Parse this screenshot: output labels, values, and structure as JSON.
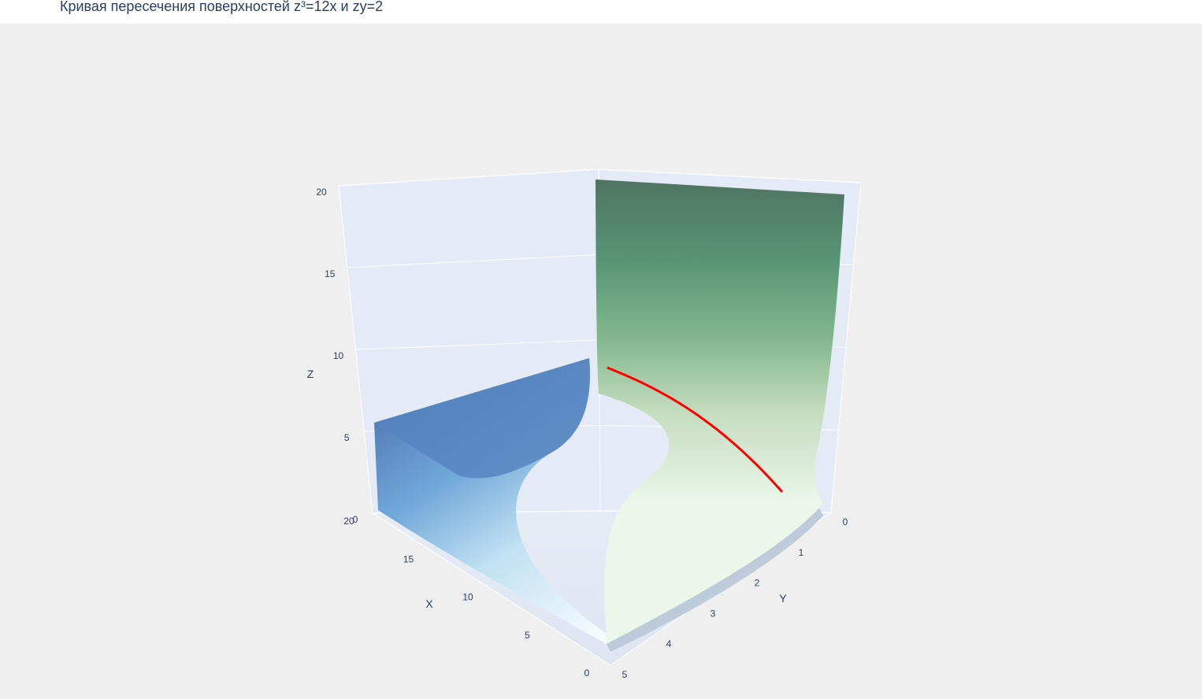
{
  "chart_title": "Кривая пересечения поверхностей z³=12x и zy=2",
  "chart_data": {
    "type": "surface3d",
    "title": "Кривая пересечения поверхностей z³=12x и zy=2",
    "surfaces": [
      {
        "equation": "z³=12x",
        "colorscale": "Blues"
      },
      {
        "equation": "zy=2",
        "colorscale": "Greens"
      }
    ],
    "curve": {
      "color": "#ff0000",
      "t_range": [
        0.4,
        5
      ]
    },
    "axes": {
      "x": {
        "label": "X",
        "range": [
          0,
          20
        ],
        "ticks": [
          "0",
          "5",
          "10",
          "15",
          "20"
        ]
      },
      "y": {
        "label": "Y",
        "range": [
          0,
          5
        ],
        "ticks": [
          "0",
          "1",
          "2",
          "3",
          "4",
          "5"
        ]
      },
      "z": {
        "label": "Z",
        "range": [
          0,
          20
        ],
        "ticks": [
          "0",
          "5",
          "10",
          "15",
          "20"
        ]
      }
    },
    "grid": true
  }
}
